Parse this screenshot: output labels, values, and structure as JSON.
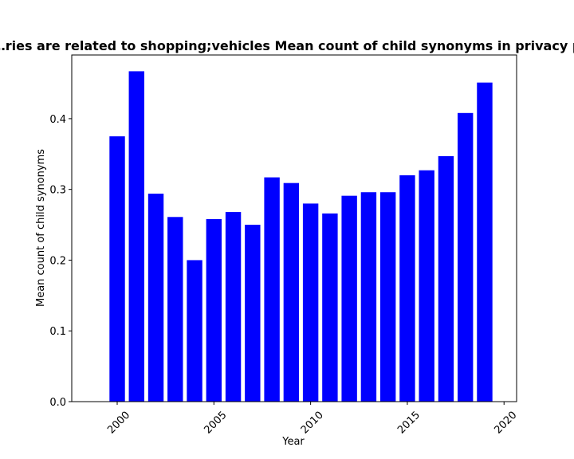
{
  "chart_data": {
    "type": "bar",
    "title": "…ries are related to shopping;vehicles Mean count of child synonyms in privacy p…",
    "xlabel": "Year",
    "ylabel": "Mean count of child synonyms",
    "bar_color": "#0000ff",
    "x": [
      2000,
      2001,
      2002,
      2003,
      2004,
      2005,
      2006,
      2007,
      2008,
      2009,
      2010,
      2011,
      2012,
      2013,
      2014,
      2015,
      2016,
      2017,
      2018,
      2019
    ],
    "values": [
      0.375,
      0.467,
      0.294,
      0.261,
      0.2,
      0.258,
      0.268,
      0.25,
      0.317,
      0.309,
      0.28,
      0.266,
      0.291,
      0.296,
      0.296,
      0.32,
      0.327,
      0.347,
      0.408,
      0.451
    ],
    "xlim": [
      1997.65,
      2020.65
    ],
    "ylim": [
      0,
      0.49
    ],
    "xticks": [
      2000,
      2005,
      2010,
      2015,
      2020
    ],
    "xtick_labels": [
      "2000",
      "2005",
      "2010",
      "2015",
      "2020"
    ],
    "yticks": [
      0.0,
      0.1,
      0.2,
      0.3,
      0.4
    ],
    "ytick_labels": [
      "0.0",
      "0.1",
      "0.2",
      "0.3",
      "0.4"
    ],
    "grid": false
  }
}
